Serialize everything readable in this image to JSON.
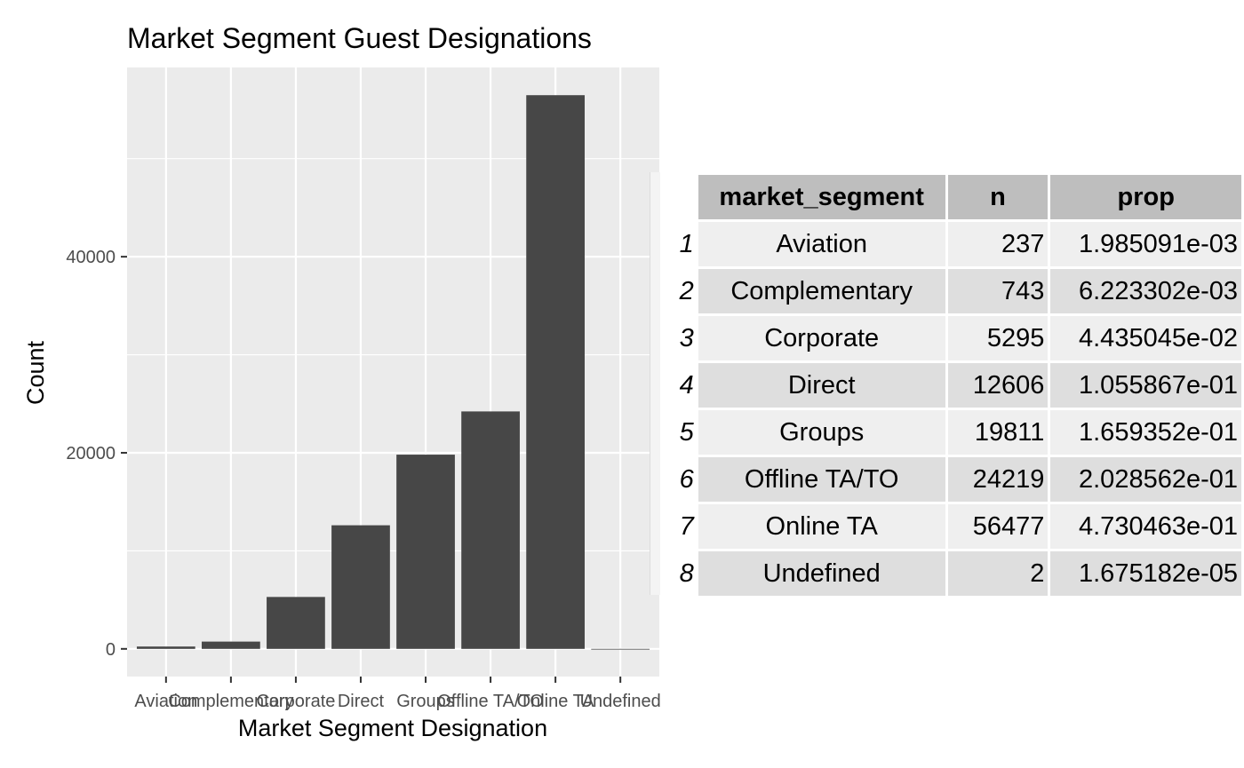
{
  "chart_data": {
    "type": "bar",
    "title": "Market Segment Guest Designations",
    "xlabel": "Market Segment Designation",
    "ylabel": "Count",
    "categories": [
      "Aviation",
      "Complementary",
      "Corporate",
      "Direct",
      "Groups",
      "Offline TA/TO",
      "Online TA",
      "Undefined"
    ],
    "values": [
      237,
      743,
      5295,
      12606,
      19811,
      24219,
      56477,
      2
    ],
    "ylim": [
      -2824,
      59303
    ],
    "yticks": [
      0,
      20000,
      40000
    ],
    "yticks_labels": [
      "0",
      "20000",
      "40000"
    ],
    "grid": true,
    "colors": {
      "bar": "#474747",
      "panel": "#ebebeb",
      "grid": "#ffffff"
    }
  },
  "table": {
    "headers": [
      "market_segment",
      "n",
      "prop"
    ],
    "rows": [
      {
        "idx": "1",
        "segment": "Aviation",
        "n": "237",
        "prop": "1.985091e-03"
      },
      {
        "idx": "2",
        "segment": "Complementary",
        "n": "743",
        "prop": "6.223302e-03"
      },
      {
        "idx": "3",
        "segment": "Corporate",
        "n": "5295",
        "prop": "4.435045e-02"
      },
      {
        "idx": "4",
        "segment": "Direct",
        "n": "12606",
        "prop": "1.055867e-01"
      },
      {
        "idx": "5",
        "segment": "Groups",
        "n": "19811",
        "prop": "1.659352e-01"
      },
      {
        "idx": "6",
        "segment": "Offline TA/TO",
        "n": "24219",
        "prop": "2.028562e-01"
      },
      {
        "idx": "7",
        "segment": "Online TA",
        "n": "56477",
        "prop": "4.730463e-01"
      },
      {
        "idx": "8",
        "segment": "Undefined",
        "n": "2",
        "prop": "1.675182e-05"
      }
    ]
  }
}
